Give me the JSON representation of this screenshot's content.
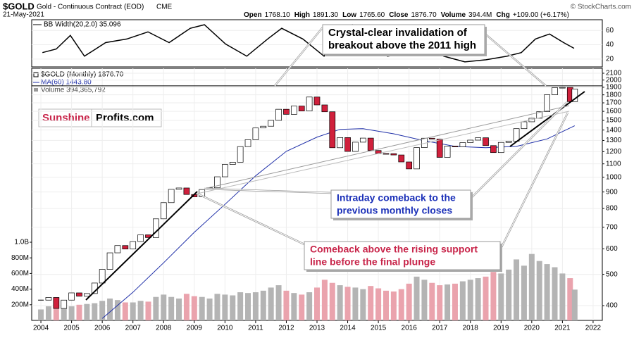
{
  "chart_data": {
    "type": "stock",
    "title": "$GOLD",
    "subtitle": "Gold - Continuous Contract (EOD)",
    "exchange": "CME",
    "credit": "© StockCharts.com",
    "date": "21-May-2021",
    "quote": [
      {
        "label": "Open",
        "value": "1768.10"
      },
      {
        "label": "High",
        "value": "1891.30"
      },
      {
        "label": "Low",
        "value": "1765.60"
      },
      {
        "label": "Close",
        "value": "1876.70"
      },
      {
        "label": "Volume",
        "value": "394.4M"
      },
      {
        "label": "Chg",
        "value": "+109.00 (+6.17%)"
      }
    ],
    "xlim": [
      2003.7,
      2022.3
    ],
    "xticks": [
      2004,
      2005,
      2006,
      2007,
      2008,
      2009,
      2010,
      2011,
      2012,
      2013,
      2014,
      2015,
      2016,
      2017,
      2018,
      2019,
      2020,
      2021,
      2022
    ],
    "ylim": [
      360,
      2175
    ],
    "log_scale": true,
    "yticks": [
      2100,
      2000,
      1900,
      1800,
      1700,
      1600,
      1500,
      1400,
      1300,
      1200,
      1100,
      1000,
      900,
      800,
      700,
      600,
      500,
      400
    ],
    "level": 1920,
    "price": {
      "name": "$GOLD (Monthly) 1876.70",
      "up_color": "#ffffff",
      "down_color": "#d0203c",
      "x": [
        2004,
        2004.25,
        2004.5,
        2004.75,
        2005,
        2005.25,
        2005.5,
        2005.75,
        2006,
        2006.25,
        2006.5,
        2006.75,
        2007,
        2007.25,
        2007.5,
        2007.75,
        2008,
        2008.25,
        2008.5,
        2008.75,
        2009,
        2009.25,
        2009.5,
        2009.75,
        2010,
        2010.25,
        2010.5,
        2010.75,
        2011,
        2011.25,
        2011.5,
        2011.75,
        2012,
        2012.25,
        2012.5,
        2012.75,
        2013,
        2013.25,
        2013.5,
        2013.75,
        2014,
        2014.25,
        2014.5,
        2014.75,
        2015,
        2015.25,
        2015.5,
        2015.75,
        2016,
        2016.25,
        2016.5,
        2016.75,
        2017,
        2017.25,
        2017.5,
        2017.75,
        2018,
        2018.25,
        2018.5,
        2018.75,
        2019,
        2019.25,
        2019.5,
        2019.75,
        2020,
        2020.25,
        2020.5,
        2020.75,
        2021,
        2021.25,
        2021.4
      ],
      "values": [
        416,
        424,
        392,
        416,
        438,
        428,
        436,
        470,
        518,
        583,
        614,
        599,
        632,
        663,
        650,
        743,
        834,
        917,
        926,
        884,
        869,
        916,
        927,
        1003,
        1095,
        1113,
        1244,
        1307,
        1421,
        1439,
        1500,
        1624,
        1566,
        1662,
        1604,
        1772,
        1675,
        1595,
        1234,
        1327,
        1202,
        1284,
        1322,
        1210,
        1184,
        1183,
        1172,
        1115,
        1061,
        1235,
        1321,
        1313,
        1152,
        1249,
        1242,
        1280,
        1303,
        1325,
        1253,
        1192,
        1282,
        1293,
        1414,
        1485,
        1523,
        1596,
        1801,
        1895,
        1898,
        1715,
        1877
      ]
    },
    "ma": {
      "name": "MA(60) 1443.80",
      "color": "#1f2fa8",
      "x": [
        2006,
        2007,
        2008,
        2009,
        2010,
        2011,
        2012,
        2013,
        2013.75,
        2014.5,
        2015.5,
        2016.5,
        2017.5,
        2018.5,
        2019.5,
        2020.5,
        2021.4
      ],
      "values": [
        365,
        440,
        543,
        675,
        824,
        1010,
        1203,
        1331,
        1407,
        1414,
        1363,
        1297,
        1246,
        1234,
        1246,
        1314,
        1444
      ]
    },
    "volume": {
      "name": "Volume 394,365,792",
      "up_color": "#b4b4b4",
      "down_color": "#eaa3ad",
      "ylim": [
        0,
        1000
      ],
      "yticks": [
        {
          "value": 200,
          "label": "200M"
        },
        {
          "value": 400,
          "label": "400M"
        },
        {
          "value": 600,
          "label": "600M"
        },
        {
          "value": 800,
          "label": "800M"
        },
        {
          "value": 1000,
          "label": "1.0B"
        }
      ],
      "values": [
        140,
        180,
        170,
        190,
        180,
        200,
        210,
        220,
        250,
        280,
        260,
        230,
        230,
        250,
        240,
        300,
        330,
        300,
        280,
        340,
        310,
        300,
        280,
        340,
        330,
        320,
        360,
        350,
        360,
        380,
        420,
        450,
        380,
        350,
        330,
        360,
        420,
        520,
        480,
        450,
        430,
        420,
        400,
        440,
        410,
        380,
        370,
        400,
        470,
        560,
        520,
        480,
        450,
        460,
        470,
        500,
        520,
        540,
        560,
        620,
        600,
        650,
        780,
        700,
        850,
        760,
        720,
        680,
        600,
        540,
        394
      ]
    },
    "bb": {
      "name": "BB Width(20,2.0) 35.096",
      "ylim": [
        9,
        75
      ],
      "yticks": [
        20,
        40,
        60
      ],
      "x": [
        2004.05,
        2004.5,
        2004.96,
        2005.42,
        2006.11,
        2006.8,
        2007.49,
        2008.18,
        2008.87,
        2009.33,
        2010.02,
        2010.71,
        2011.39,
        2011.85,
        2012.54,
        2013.23,
        2013.69,
        2014.15,
        2014.61,
        2015.3,
        2015.99,
        2016.45,
        2017.13,
        2017.82,
        2018.51,
        2019.2,
        2019.66,
        2020.12,
        2020.58,
        2021.04,
        2021.38
      ],
      "values": [
        29,
        34,
        53,
        24,
        43,
        48,
        58,
        43,
        63,
        68,
        41,
        24,
        48,
        63,
        48,
        24,
        53,
        68,
        48,
        24,
        29,
        41,
        24,
        16,
        19,
        24,
        29,
        48,
        55,
        43,
        35
      ]
    },
    "logo": [
      "Sunshine",
      "Profits.com"
    ],
    "annotations": [
      {
        "lines": [
          "Crystal-clear invalidation of",
          "breakout above the 2011 high"
        ],
        "color": "#000000"
      },
      {
        "lines": [
          "Intraday comeback to the",
          "previous monthly closes"
        ],
        "color": "#1a2fb8"
      },
      {
        "lines": [
          "Comeback above the rising support",
          "line before the final plunge"
        ],
        "color": "#c8254a"
      }
    ]
  }
}
